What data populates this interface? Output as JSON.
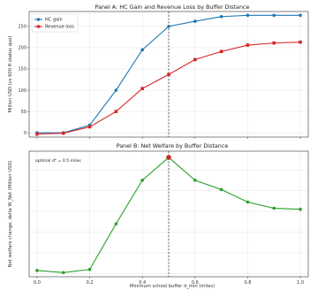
{
  "chart_data": [
    {
      "type": "line",
      "title": "Panel A: HC Gain and Revenue Loss by Buffer Distance",
      "xlabel": "",
      "ylabel": "Million USD (vs 600 ft status quo)",
      "x": [
        0.0,
        0.1,
        0.2,
        0.3,
        0.4,
        0.5,
        0.6,
        0.7,
        0.8,
        0.9,
        1.0
      ],
      "xlim": [
        -0.03,
        1.03
      ],
      "ylim": [
        -10,
        285
      ],
      "xticks": [
        0.0,
        0.2,
        0.4,
        0.6,
        0.8,
        1.0
      ],
      "yticks": [
        0,
        50,
        100,
        150,
        200,
        250
      ],
      "grid": true,
      "legend": "top-left",
      "vline_x": 0.5,
      "series": [
        {
          "name": "HC gain",
          "color": "#1f77b4",
          "marker": "circle",
          "values": [
            0,
            0,
            18,
            100,
            195,
            250,
            262,
            273,
            276,
            276,
            276
          ]
        },
        {
          "name": "Revenue loss",
          "color": "#d62728",
          "marker": "square",
          "values": [
            -3,
            -1,
            14,
            50,
            104,
            137,
            172,
            191,
            206,
            211,
            213
          ]
        }
      ]
    },
    {
      "type": "line",
      "title": "Panel B: Net Welfare by Buffer Distance",
      "xlabel": "Minimum school buffer d_min (miles)",
      "ylabel": "Net welfare change, delta W_Net (Million USD)",
      "x": [
        0.0,
        0.1,
        0.2,
        0.3,
        0.4,
        0.5,
        0.6,
        0.7,
        0.8,
        0.9,
        1.0
      ],
      "xlim": [
        -0.03,
        1.03
      ],
      "ylim": [
        -3,
        118
      ],
      "xticks": [
        0.0,
        0.2,
        0.4,
        0.6,
        0.8,
        1.0
      ],
      "grid": true,
      "vline_x": 0.5,
      "annotation": "optimal d* = 0.5 miles",
      "optimum": {
        "x": 0.5,
        "y": 112
      },
      "series": [
        {
          "name": "",
          "color": "#2ca02c",
          "marker": "circle",
          "values": [
            3,
            1,
            4,
            48,
            90,
            112,
            90,
            81,
            69,
            63,
            62
          ]
        }
      ]
    }
  ]
}
